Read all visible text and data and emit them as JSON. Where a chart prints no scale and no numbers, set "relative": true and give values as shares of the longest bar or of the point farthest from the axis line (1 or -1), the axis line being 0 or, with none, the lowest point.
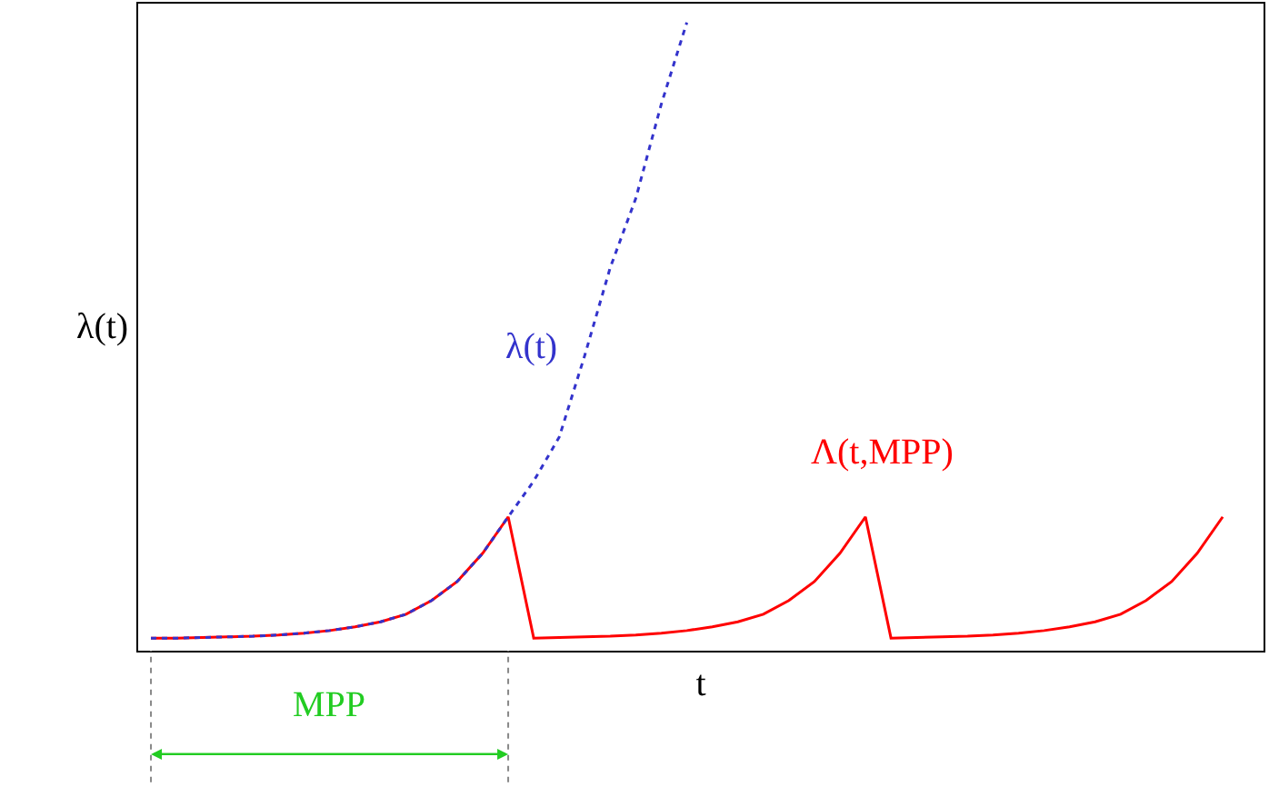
{
  "chart_data": {
    "type": "line",
    "relative": true,
    "ylabel": "λ(t)",
    "xlabel": "t",
    "legend": false,
    "marker": "none",
    "categories": [
      null,
      null,
      null,
      null,
      null,
      null,
      null,
      null,
      null,
      null,
      null,
      null,
      null,
      null,
      null,
      null,
      null,
      null,
      null,
      null,
      null,
      null,
      null,
      null,
      null,
      null,
      null,
      null,
      null,
      null,
      null,
      null,
      null,
      null,
      null,
      null,
      null,
      null,
      null,
      null,
      null,
      null,
      null
    ],
    "series": [
      {
        "name": "λ(t)",
        "color": "#3333cc",
        "line_style": "dotted",
        "values": [
          0.02,
          0.02,
          0.021,
          0.022,
          0.023,
          0.025,
          0.028,
          0.032,
          0.038,
          0.046,
          0.058,
          0.08,
          0.11,
          0.155,
          0.213,
          0.27,
          0.34,
          0.47,
          0.61,
          0.72,
          0.87,
          1.0,
          null,
          null,
          null,
          null,
          null,
          null,
          null,
          null,
          null,
          null,
          null,
          null,
          null,
          null,
          null,
          null,
          null,
          null,
          null,
          null,
          null
        ]
      },
      {
        "name": "Λ(t,MPP)",
        "color": "#ff0000",
        "line_style": "solid",
        "values": [
          0.02,
          0.02,
          0.021,
          0.022,
          0.023,
          0.025,
          0.028,
          0.032,
          0.038,
          0.046,
          0.058,
          0.08,
          0.11,
          0.155,
          0.213,
          0.02,
          0.021,
          0.022,
          0.023,
          0.025,
          0.028,
          0.032,
          0.038,
          0.046,
          0.058,
          0.08,
          0.11,
          0.155,
          0.213,
          0.02,
          0.021,
          0.022,
          0.023,
          0.025,
          0.028,
          0.032,
          0.038,
          0.046,
          0.058,
          0.08,
          0.11,
          0.155,
          0.213
        ]
      }
    ],
    "annotations": [
      "MPP"
    ]
  }
}
